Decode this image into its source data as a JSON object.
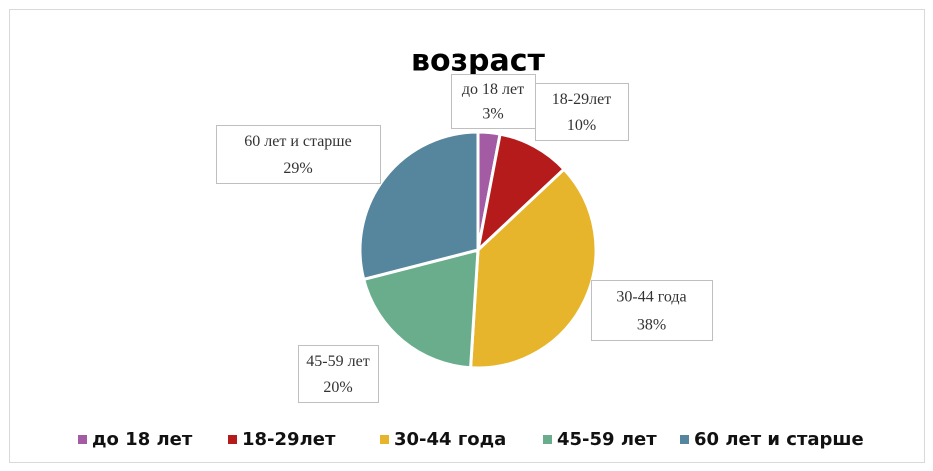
{
  "chart_data": {
    "type": "pie",
    "title": "возраст",
    "categories": [
      "до 18 лет",
      "18-29лет",
      "30-44 года",
      "45-59 лет",
      "60 лет и старше"
    ],
    "values": [
      3,
      10,
      38,
      20,
      29
    ],
    "value_labels": [
      "3%",
      "10%",
      "38%",
      "20%",
      "29%"
    ],
    "colors": [
      "#a35ca3",
      "#b51b1b",
      "#e6b52b",
      "#69ad8d",
      "#55869e"
    ],
    "legend": "bottom"
  }
}
